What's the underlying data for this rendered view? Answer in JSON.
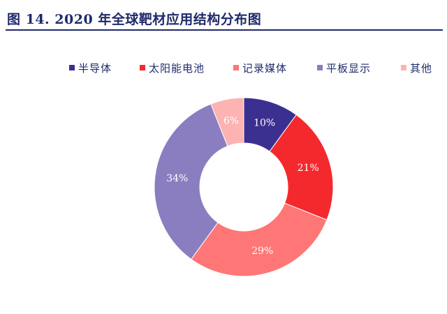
{
  "title": "图 14. 2020 年全球靶材应用结构分布图",
  "chart_data": {
    "type": "pie",
    "subtype": "donut",
    "categories": [
      "半导体",
      "太阳能电池",
      "记录媒体",
      "平板显示",
      "其他"
    ],
    "values": [
      10,
      21,
      29,
      34,
      6
    ],
    "labels": [
      "10%",
      "21%",
      "29%",
      "34%",
      "6%"
    ],
    "colors": [
      "#3b3090",
      "#f4292e",
      "#ff7676",
      "#8a7ec0",
      "#fdb3b1"
    ],
    "legend_position": "top",
    "start_angle": "12 o'clock",
    "direction": "clockwise"
  }
}
